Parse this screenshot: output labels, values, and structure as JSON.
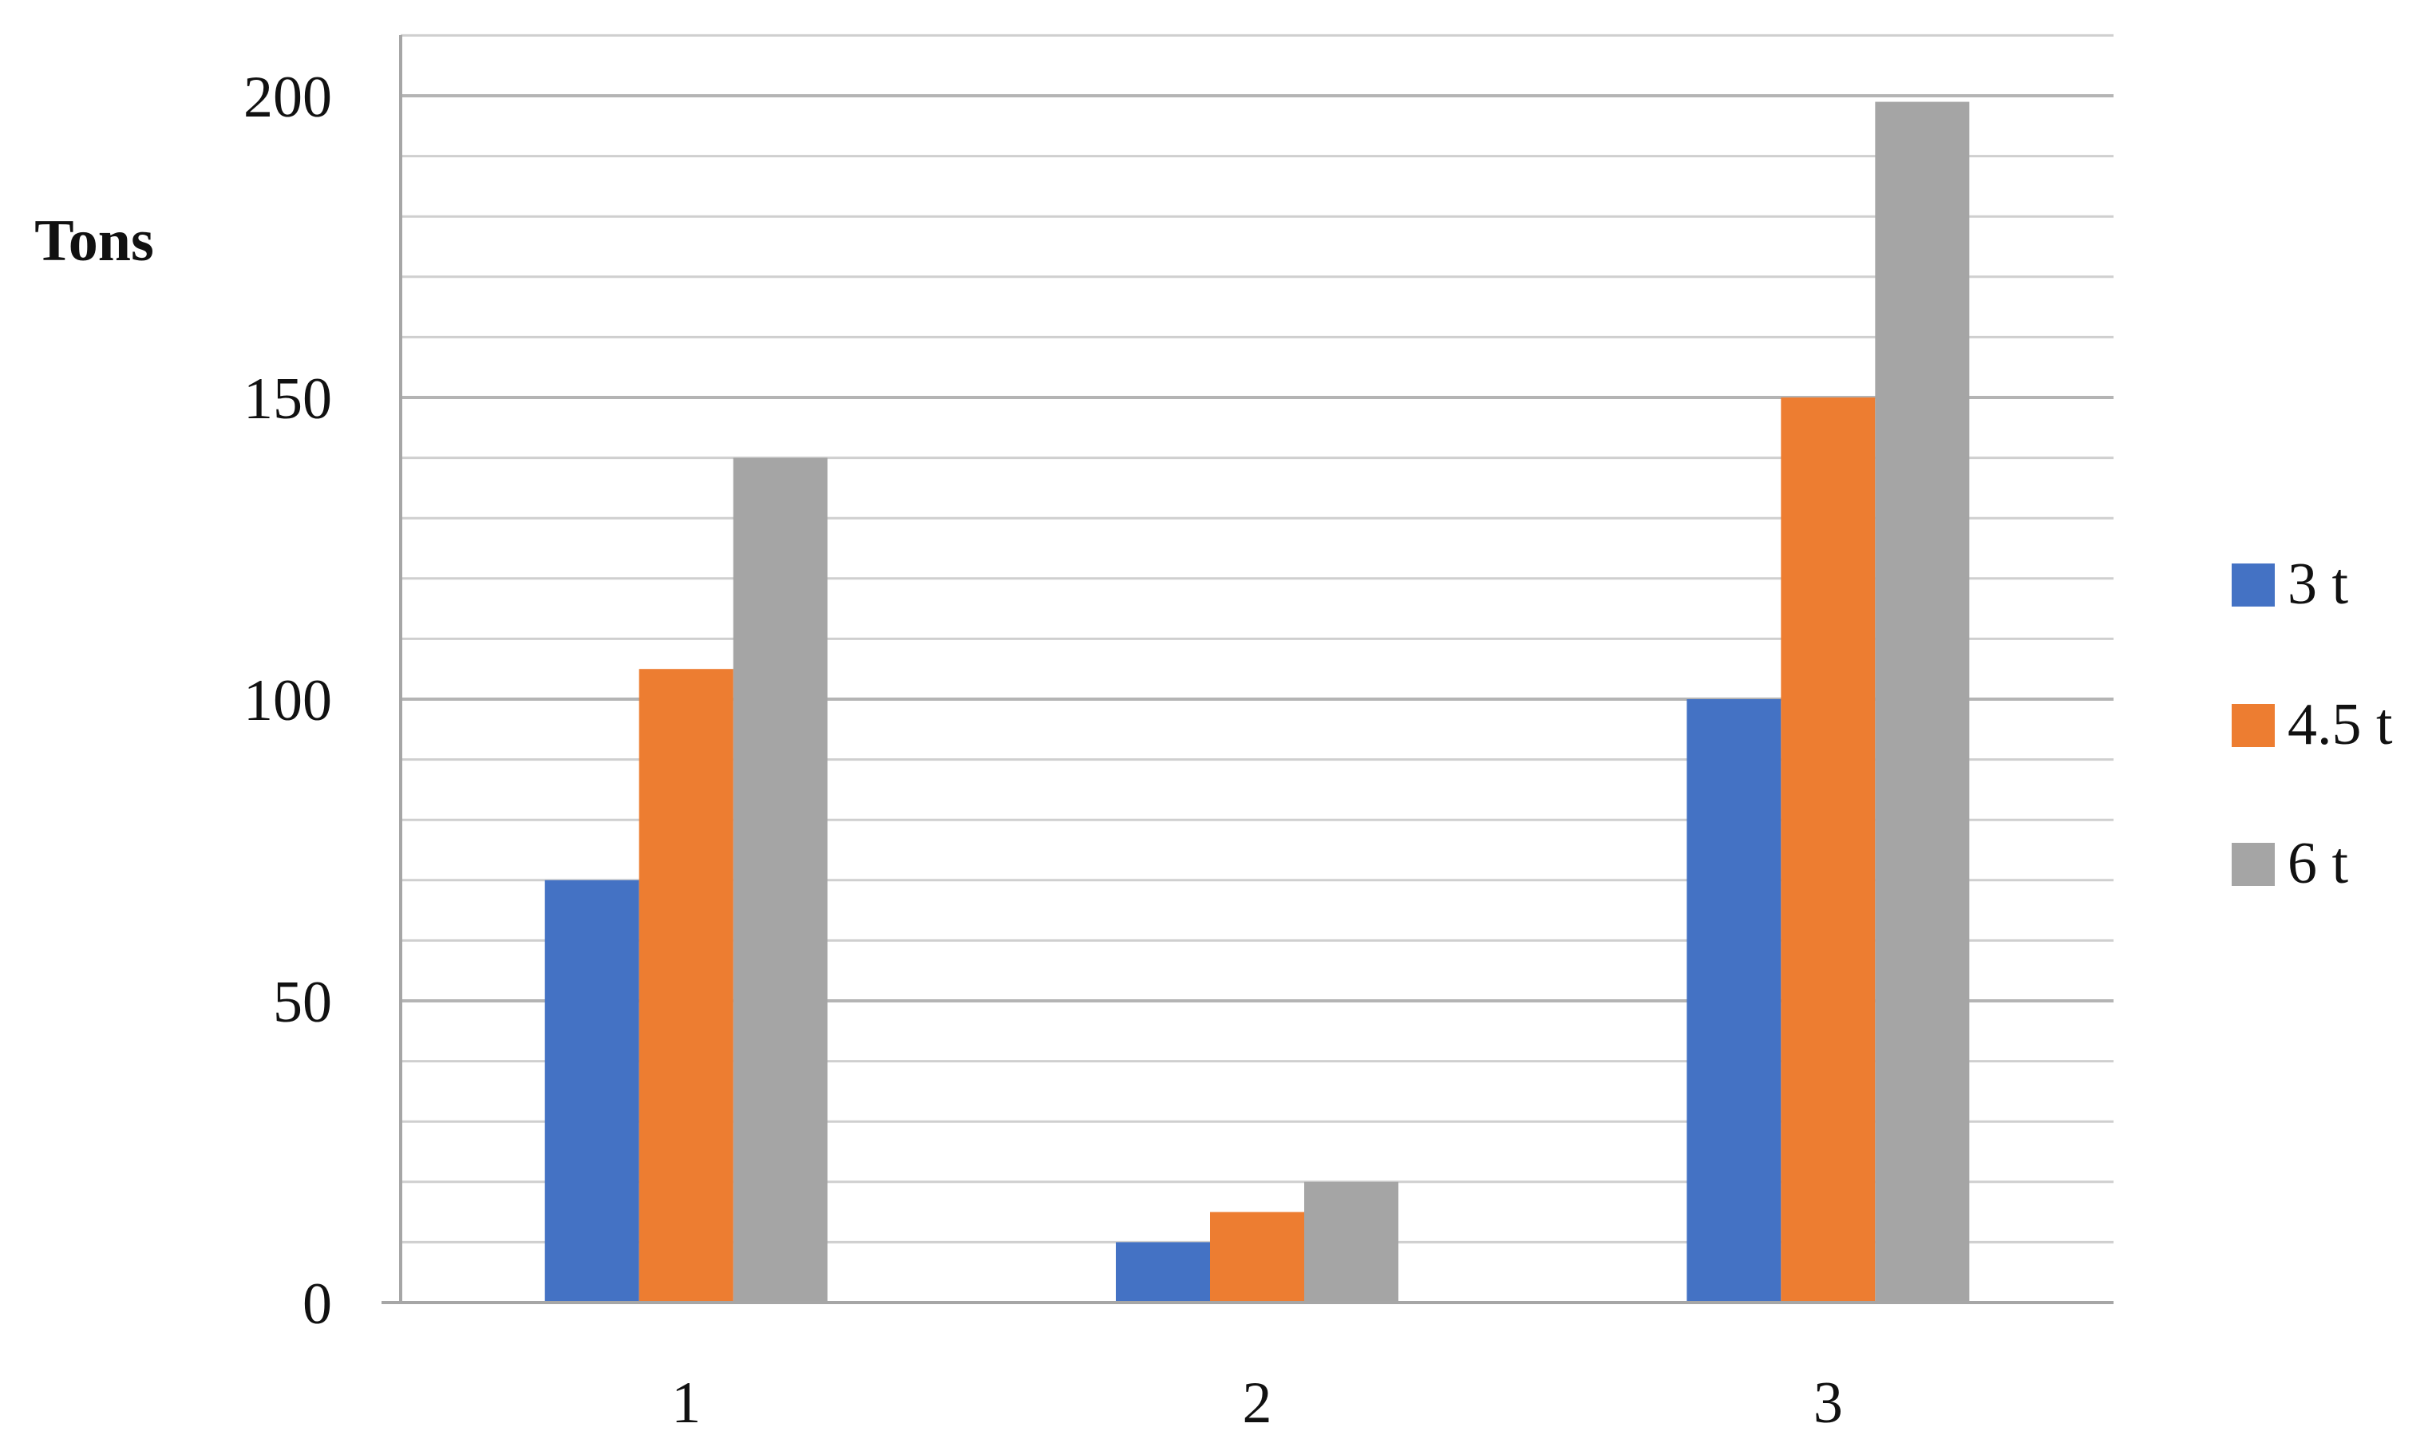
{
  "chart_data": {
    "type": "bar",
    "title": "",
    "xlabel": "",
    "ylabel": "Tons",
    "categories": [
      "1",
      "2",
      "3"
    ],
    "series": [
      {
        "name": "3 t",
        "values": [
          70,
          10,
          100
        ],
        "color": "#4472C4"
      },
      {
        "name": "4.5 t",
        "values": [
          105,
          15,
          150
        ],
        "color": "#ED7D31"
      },
      {
        "name": "6 t",
        "values": [
          140,
          20,
          199
        ],
        "color": "#A5A5A5"
      }
    ],
    "ylim": [
      0,
      200
    ],
    "yticks": [
      "0",
      "50",
      "100",
      "150",
      "200"
    ],
    "grid": true,
    "legend_position": "right"
  }
}
